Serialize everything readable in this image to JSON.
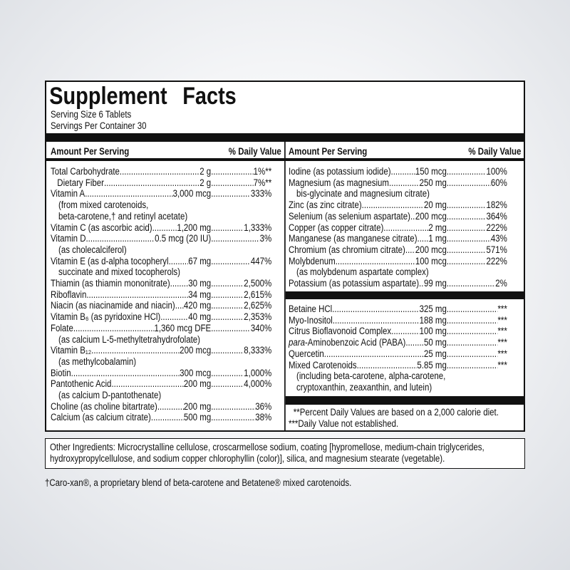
{
  "title": "Supplement Facts",
  "serving_size": "Serving Size 6 Tablets",
  "servings_per_container": "Servings Per Container 30",
  "columns": [
    {
      "header_amount": "Amount Per Serving",
      "header_dv": "% Daily Value",
      "rows": [
        {
          "name": "Total Carbohydrate",
          "amount": "2 g",
          "dv": "1%**"
        },
        {
          "name": "Dietary Fiber",
          "amount": "2 g",
          "dv": "7%**",
          "indent": true
        },
        {
          "name": "Vitamin A",
          "amount": "3,000 mcg",
          "dv": "333%",
          "notes": [
            "(from mixed carotenoids,",
            "beta-carotene,† and retinyl acetate)"
          ]
        },
        {
          "name": "Vitamin C (as ascorbic acid)",
          "amount": "1,200 mg",
          "dv": "1,333%"
        },
        {
          "name": "Vitamin D",
          "amount": "0.5 mcg (20 IU)",
          "dv": "3%",
          "notes": [
            "(as cholecalciferol)"
          ]
        },
        {
          "name": "Vitamin E (as d-alpha tocopheryl",
          "amount": "67 mg",
          "dv": "447%",
          "notes": [
            "succinate and mixed tocopherols)"
          ]
        },
        {
          "name": "Thiamin (as thiamin mononitrate)",
          "amount": "30 mg",
          "dv": "2,500%"
        },
        {
          "name": "Riboflavin",
          "amount": "34 mg",
          "dv": "2,615%"
        },
        {
          "name": "Niacin (as niacinamide and niacin)",
          "amount": "420 mg",
          "dv": "2,625%"
        },
        {
          "name": "Vitamin B₆ (as pyridoxine HCl)",
          "amount": "40 mg",
          "dv": "2,353%"
        },
        {
          "name": "Folate",
          "amount": "1,360 mcg DFE",
          "dv": "340%",
          "notes": [
            "(as calcium L-5-methyltetrahydrofolate)"
          ]
        },
        {
          "name": "Vitamin B₁₂",
          "amount": "200 mcg",
          "dv": "8,333%",
          "notes": [
            "(as methylcobalamin)"
          ]
        },
        {
          "name": "Biotin",
          "amount": "300 mcg",
          "dv": "1,000%"
        },
        {
          "name": "Pantothenic Acid",
          "amount": "200 mg",
          "dv": "4,000%",
          "notes": [
            "(as calcium D-pantothenate)"
          ]
        },
        {
          "name": "Choline (as choline bitartrate)",
          "amount": "200 mg",
          "dv": "36%"
        },
        {
          "name": "Calcium (as calcium citrate)",
          "amount": "500 mg",
          "dv": "38%"
        }
      ]
    },
    {
      "header_amount": "Amount Per Serving",
      "header_dv": "% Daily Value",
      "rows": [
        {
          "name": "Iodine (as potassium iodide)",
          "amount": "150 mcg",
          "dv": "100%"
        },
        {
          "name": "Magnesium (as magnesium",
          "amount": "250 mg",
          "dv": "60%",
          "notes": [
            "bis-glycinate and magnesium citrate)"
          ]
        },
        {
          "name": "Zinc (as zinc citrate)",
          "amount": "20 mg",
          "dv": "182%"
        },
        {
          "name": "Selenium (as selenium aspartate)",
          "amount": "200 mcg",
          "dv": "364%"
        },
        {
          "name": "Copper (as copper citrate)",
          "amount": "2 mg",
          "dv": "222%"
        },
        {
          "name": "Manganese (as manganese citrate)",
          "amount": "1 mg",
          "dv": "43%"
        },
        {
          "name": "Chromium (as chromium citrate)",
          "amount": "200 mcg",
          "dv": "571%"
        },
        {
          "name": "Molybdenum",
          "amount": "100 mcg",
          "dv": "222%",
          "notes": [
            "(as molybdenum aspartate complex)"
          ]
        },
        {
          "name": "Potassium (as potassium aspartate)",
          "amount": "99 mg",
          "dv": "2%"
        }
      ],
      "rows2": [
        {
          "name": "Betaine HCl",
          "amount": "325 mg",
          "dv": "***"
        },
        {
          "name": "Myo-Inositol",
          "amount": "188 mg",
          "dv": "***"
        },
        {
          "name": "Citrus Bioflavonoid Complex",
          "amount": "100 mg",
          "dv": "***"
        },
        {
          "name_italic": "para",
          "name": "-Aminobenzoic Acid (PABA)",
          "amount": "50 mg",
          "dv": "***"
        },
        {
          "name": "Quercetin",
          "amount": "25 mg",
          "dv": "***"
        },
        {
          "name": "Mixed Carotenoids",
          "amount": "5.85 mg",
          "dv": "***",
          "notes": [
            "(including beta-carotene, alpha-carotene,",
            "cryptoxanthin, zeaxanthin, and lutein)"
          ]
        }
      ]
    }
  ],
  "footnotes": [
    "**Percent Daily Values are based on a 2,000 calorie diet.",
    "***Daily Value not established."
  ],
  "other_ingredients": "Other Ingredients: Microcrystalline cellulose, croscarmellose sodium, coating [hypromellose, medium-chain triglycerides, hydroxypropylcellulose, and sodium copper chlorophyllin (color)], silica, and magnesium stearate (vegetable).",
  "dagger_note": "†Caro-xan®, a proprietary blend of beta-carotene and Betatene® mixed carotenoids."
}
